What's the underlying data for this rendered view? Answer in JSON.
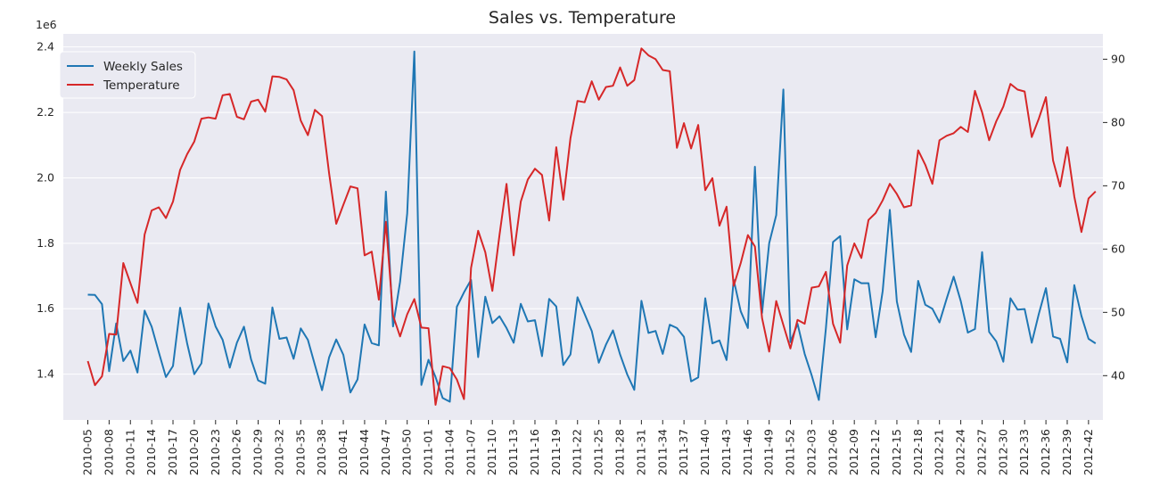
{
  "chart_data": {
    "type": "line",
    "title": "Sales vs. Temperature",
    "y_multiplier_label": "1e6",
    "xlabel": "",
    "ylabel": "",
    "x_tick_labels": [
      "2010-05",
      "2010-08",
      "2010-11",
      "2010-14",
      "2010-17",
      "2010-20",
      "2010-23",
      "2010-26",
      "2010-29",
      "2010-32",
      "2010-35",
      "2010-38",
      "2010-41",
      "2010-44",
      "2010-47",
      "2010-50",
      "2011-01",
      "2011-04",
      "2011-07",
      "2011-10",
      "2011-13",
      "2011-16",
      "2011-19",
      "2011-22",
      "2011-25",
      "2011-28",
      "2011-31",
      "2011-34",
      "2011-37",
      "2011-40",
      "2011-43",
      "2011-46",
      "2011-49",
      "2011-52",
      "2012-03",
      "2012-06",
      "2012-09",
      "2012-12",
      "2012-15",
      "2012-18",
      "2012-21",
      "2012-24",
      "2012-27",
      "2012-30",
      "2012-33",
      "2012-36",
      "2012-39",
      "2012-42"
    ],
    "y_left": {
      "lim": [
        1.26,
        2.44
      ],
      "ticks": [
        "1.4",
        "1.6",
        "1.8",
        "2.0",
        "2.2",
        "2.4"
      ],
      "tick_values": [
        1.4,
        1.6,
        1.8,
        2.0,
        2.2,
        2.4
      ]
    },
    "y_right": {
      "lim": [
        33,
        94
      ],
      "ticks": [
        "40",
        "50",
        "60",
        "70",
        "80",
        "90"
      ],
      "tick_values": [
        40,
        50,
        60,
        70,
        80,
        90
      ]
    },
    "grid": true,
    "legend_position": "upper-left",
    "series": [
      {
        "name": "Weekly Sales",
        "axis": "left",
        "color": "#1f77b4",
        "values": [
          1.643,
          1.642,
          1.614,
          1.409,
          1.555,
          1.44,
          1.472,
          1.405,
          1.594,
          1.545,
          1.467,
          1.391,
          1.425,
          1.603,
          1.494,
          1.4,
          1.433,
          1.616,
          1.546,
          1.505,
          1.42,
          1.496,
          1.545,
          1.445,
          1.381,
          1.371,
          1.604,
          1.508,
          1.512,
          1.447,
          1.54,
          1.505,
          1.428,
          1.351,
          1.451,
          1.506,
          1.459,
          1.344,
          1.384,
          1.552,
          1.495,
          1.488,
          1.958,
          1.546,
          1.682,
          1.891,
          2.386,
          1.367,
          1.444,
          1.391,
          1.327,
          1.316,
          1.606,
          1.65,
          1.688,
          1.452,
          1.637,
          1.556,
          1.577,
          1.541,
          1.496,
          1.615,
          1.561,
          1.565,
          1.455,
          1.63,
          1.607,
          1.428,
          1.46,
          1.635,
          1.584,
          1.532,
          1.435,
          1.49,
          1.534,
          1.46,
          1.399,
          1.352,
          1.624,
          1.526,
          1.532,
          1.462,
          1.551,
          1.541,
          1.514,
          1.378,
          1.39,
          1.632,
          1.494,
          1.503,
          1.443,
          1.688,
          1.592,
          1.541,
          2.034,
          1.587,
          1.8,
          1.886,
          2.27,
          1.498,
          1.554,
          1.462,
          1.396,
          1.321,
          1.54,
          1.804,
          1.822,
          1.537,
          1.69,
          1.678,
          1.678,
          1.513,
          1.654,
          1.902,
          1.622,
          1.521,
          1.468,
          1.685,
          1.612,
          1.6,
          1.558,
          1.63,
          1.698,
          1.623,
          1.527,
          1.538,
          1.773,
          1.529,
          1.5,
          1.438,
          1.632,
          1.597,
          1.599,
          1.496,
          1.584,
          1.663,
          1.515,
          1.508,
          1.436,
          1.672,
          1.578,
          1.508,
          1.494
        ]
      },
      {
        "name": "Temperature",
        "axis": "right",
        "color": "#d62728",
        "values": [
          42.3,
          38.5,
          39.9,
          46.6,
          46.5,
          57.8,
          54.6,
          51.5,
          62.3,
          66.1,
          66.6,
          64.9,
          67.5,
          72.5,
          75.0,
          77.0,
          80.6,
          80.8,
          80.6,
          84.3,
          84.5,
          80.9,
          80.5,
          83.3,
          83.6,
          81.7,
          87.3,
          87.2,
          86.8,
          85.1,
          80.3,
          78.0,
          82.0,
          81.0,
          72.0,
          64.0,
          67.0,
          69.9,
          69.6,
          59.0,
          59.6,
          52.0,
          64.3,
          49.5,
          46.2,
          49.7,
          52.1,
          47.6,
          47.5,
          35.4,
          41.5,
          41.2,
          39.4,
          36.3,
          57.0,
          62.9,
          59.5,
          53.4,
          62.2,
          70.3,
          59.0,
          67.5,
          71.0,
          72.7,
          71.7,
          64.5,
          76.1,
          67.8,
          77.5,
          83.4,
          83.2,
          86.5,
          83.6,
          85.6,
          85.8,
          88.7,
          85.8,
          86.7,
          91.7,
          90.6,
          90.0,
          88.3,
          88.1,
          76.0,
          79.9,
          75.9,
          79.6,
          69.3,
          71.2,
          63.7,
          66.7,
          54.2,
          57.8,
          62.2,
          60.4,
          49.1,
          43.8,
          51.8,
          48.0,
          44.3,
          48.8,
          48.2,
          53.9,
          54.1,
          56.4,
          48.2,
          45.2,
          57.4,
          60.9,
          58.6,
          64.6,
          65.7,
          67.7,
          70.3,
          68.7,
          66.6,
          66.9,
          75.6,
          73.3,
          70.3,
          77.2,
          77.9,
          78.3,
          79.3,
          78.5,
          85.0,
          81.6,
          77.2,
          80.2,
          82.5,
          86.1,
          85.2,
          84.9,
          77.7,
          80.6,
          84.0,
          74.0,
          69.9,
          76.1,
          68.3,
          62.7,
          68.0,
          69.1
        ]
      }
    ]
  }
}
